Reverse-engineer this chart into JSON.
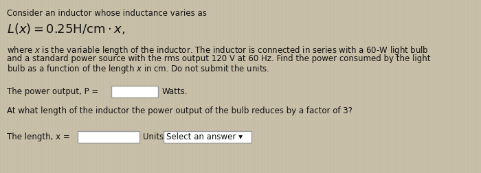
{
  "bg_color": "#c8bfa8",
  "title_line": "Consider an inductor whose inductance varies as",
  "body_text": "where χ is the variable length of the inductor. The inductor is connected in series with a 60-W light bulb\nand a standard power source with the rms output 120 V at 60 Hz. Find the power consumed by the light\nbulb as a function of the length χ in cm. Do not submit the units.",
  "power_label": "The power output, P =",
  "power_suffix": "Watts.",
  "length_question": "At what length of the inductor the power output of the bulb reduces by a factor of 3?",
  "length_label": "The length, x =",
  "units_label": "Units",
  "dropdown_label": "Select an answer",
  "box_fill": "#d4c9b2",
  "box_edge": "#aaaaaa",
  "box_fill_white": "#e0d9cc",
  "text_color": "#111111",
  "font_size_body": 8.5,
  "font_size_formula": 13.0,
  "font_size_title": 8.5,
  "stripe_color": "#bfb59e"
}
